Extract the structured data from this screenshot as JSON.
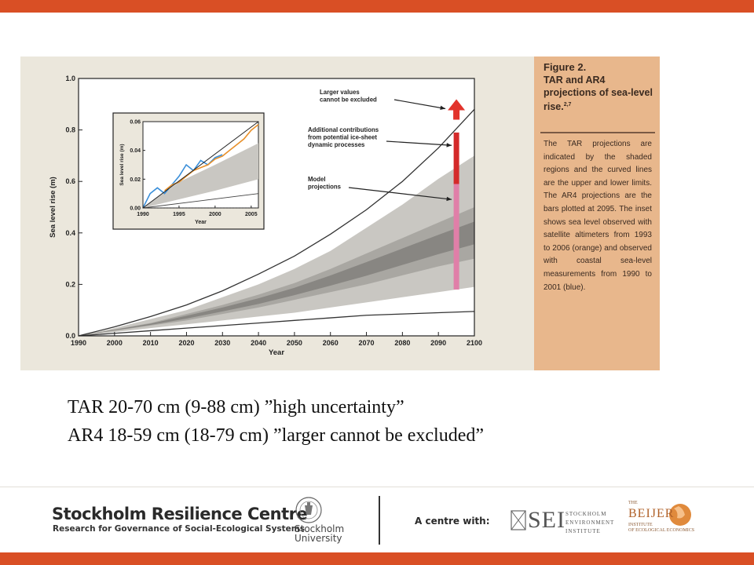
{
  "figure": {
    "heading_number": "Figure 2.",
    "heading_title": "TAR and AR4 projections of sea-level rise.",
    "heading_sup": "2,7",
    "caption": "The TAR projections are indicated by the shaded regions and the curved lines are the upper and lower limits. The AR4 projections are the bars plotted at 2095. The inset shows sea level observed with satellite altimeters from 1993 to 2006 (orange) and observed with coastal sea-level measurements from 1990 to 2001 (blue)."
  },
  "chart_data": [
    {
      "type": "area",
      "xlabel": "Year",
      "ylabel": "Sea level rise (m)",
      "xlim": [
        1990,
        2100
      ],
      "ylim": [
        0.0,
        1.0
      ],
      "x_ticks": [
        "1990",
        "2000",
        "2010",
        "2020",
        "2030",
        "2040",
        "2050",
        "2060",
        "2070",
        "2080",
        "2090",
        "2100"
      ],
      "y_ticks": [
        "0.0",
        "0.2",
        "0.4",
        "0.6",
        "0.8",
        "1.0"
      ],
      "x": [
        1990,
        2000,
        2010,
        2020,
        2030,
        2040,
        2050,
        2060,
        2070,
        2080,
        2090,
        2100
      ],
      "series": [
        {
          "values": [
            0.0,
            0.035,
            0.075,
            0.12,
            0.175,
            0.24,
            0.31,
            0.395,
            0.49,
            0.6,
            0.73,
            0.88
          ]
        },
        {
          "values": [
            0.0,
            0.03,
            0.065,
            0.1,
            0.15,
            0.2,
            0.26,
            0.33,
            0.42,
            0.51,
            0.61,
            0.7
          ]
        },
        {
          "values": [
            0.0,
            0.025,
            0.05,
            0.085,
            0.12,
            0.16,
            0.205,
            0.26,
            0.32,
            0.38,
            0.44,
            0.5
          ]
        },
        {
          "values": [
            0.0,
            0.02,
            0.04,
            0.06,
            0.085,
            0.11,
            0.14,
            0.17,
            0.2,
            0.235,
            0.27,
            0.3
          ]
        },
        {
          "values": [
            0.0,
            0.015,
            0.03,
            0.045,
            0.06,
            0.075,
            0.09,
            0.11,
            0.13,
            0.15,
            0.17,
            0.19
          ]
        },
        {
          "values": [
            0.0,
            0.01,
            0.02,
            0.03,
            0.04,
            0.05,
            0.06,
            0.07,
            0.08,
            0.085,
            0.09,
            0.095
          ]
        }
      ],
      "bars": {
        "x": 2095,
        "model_projections": [
          0.18,
          0.59
        ],
        "ice_sheet_contributions": [
          0.59,
          0.79
        ],
        "larger_values_arrow_from": 0.84,
        "colors": {
          "model": "#e07fa8",
          "ice": "#d42a2a",
          "arrow": "#e2332b"
        }
      },
      "annotations": [
        {
          "text": "Larger values cannot be excluded",
          "lines": [
            "Larger values",
            "cannot be excluded"
          ]
        },
        {
          "text": "Additional contributions from potential ice-sheet dynamic processes",
          "lines": [
            "Additional contributions",
            "from potential ice-sheet",
            "dynamic processes"
          ]
        },
        {
          "text": "Model projections",
          "lines": [
            "Model",
            "projections"
          ]
        }
      ],
      "colors": {
        "outer": "#c9c7c2",
        "middle": "#a9a7a2",
        "inner": "#888682"
      }
    },
    {
      "type": "line",
      "inset": true,
      "xlabel": "Year",
      "ylabel": "Sea level rise (m)",
      "xlim": [
        1990,
        2006
      ],
      "ylim": [
        0.0,
        0.06
      ],
      "x_ticks": [
        "1990",
        "1995",
        "2000",
        "2005"
      ],
      "y_ticks": [
        "0.00",
        "0.02",
        "0.04",
        "0.06"
      ],
      "series": [
        {
          "x": [
            1990,
            1991,
            1992,
            1993,
            1994,
            1995,
            1996,
            1997,
            1998,
            1999,
            2000,
            2001
          ],
          "values": [
            0.0,
            0.01,
            0.014,
            0.01,
            0.016,
            0.022,
            0.03,
            0.026,
            0.033,
            0.03,
            0.035,
            0.037
          ],
          "color": "#3a8fd9"
        },
        {
          "x": [
            1993,
            1994,
            1995,
            1996,
            1997,
            1998,
            1999,
            2000,
            2001,
            2002,
            2003,
            2004,
            2005,
            2006
          ],
          "values": [
            0.012,
            0.016,
            0.018,
            0.022,
            0.026,
            0.028,
            0.03,
            0.034,
            0.036,
            0.04,
            0.044,
            0.048,
            0.054,
            0.058
          ],
          "color": "#e8902a"
        },
        {
          "x": [
            1990,
            2006
          ],
          "values": [
            0.0,
            0.06
          ],
          "color": "#222222"
        }
      ],
      "band_upper": [
        [
          1990,
          0.0
        ],
        [
          1995,
          0.018
        ],
        [
          2000,
          0.03
        ],
        [
          2006,
          0.045
        ]
      ],
      "band_lower": [
        [
          1990,
          0.0
        ],
        [
          1995,
          0.006
        ],
        [
          2000,
          0.012
        ],
        [
          2006,
          0.02
        ]
      ]
    }
  ],
  "body_text": {
    "line1": "TAR 20-70 cm (9-88 cm) ”high uncertainty”",
    "line2": "AR4 18-59 cm (18-79 cm) ”larger cannot be excluded”"
  },
  "footer": {
    "src_title": "Stockholm Resilience Centre",
    "src_subtitle": "Research for Governance of Social-Ecological Systems",
    "su_line1": "Stockholm",
    "su_line2": "University",
    "centre_with": "A centre with:",
    "sei_abbr": "SEI",
    "sei_line1": "STOCKHOLM",
    "sei_line2": "ENVIRONMENT",
    "sei_line3": "INSTITUTE",
    "beijer_name": "BEIJER",
    "beijer_the": "THE",
    "beijer_sub1": "INSTITUTE",
    "beijer_sub2": "OF ECOLOGICAL ECONOMICS"
  }
}
